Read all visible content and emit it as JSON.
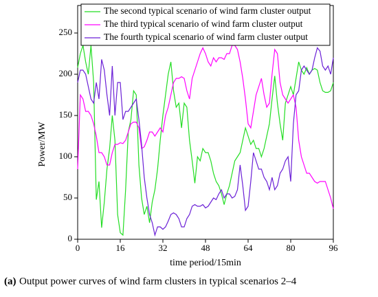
{
  "chart_data": {
    "type": "line",
    "caption_label": "(a)",
    "caption": "Output power curves of wind farm clusters in typical scenarios 2–4",
    "xlabel": "time period/15min",
    "ylabel": "Power/MW",
    "legend": "upper",
    "xlim": [
      0,
      96
    ],
    "xticks": [
      0,
      16,
      32,
      48,
      64,
      80,
      96
    ],
    "ylim": [
      0,
      250
    ],
    "yticks": [
      0,
      50,
      100,
      150,
      200,
      250
    ],
    "x": [
      0,
      1,
      2,
      3,
      4,
      5,
      6,
      7,
      8,
      9,
      10,
      11,
      12,
      13,
      14,
      15,
      16,
      17,
      18,
      19,
      20,
      21,
      22,
      23,
      24,
      25,
      26,
      27,
      28,
      29,
      30,
      31,
      32,
      33,
      34,
      35,
      36,
      37,
      38,
      39,
      40,
      41,
      42,
      43,
      44,
      45,
      46,
      47,
      48,
      49,
      50,
      51,
      52,
      53,
      54,
      55,
      56,
      57,
      58,
      59,
      60,
      61,
      62,
      63,
      64,
      65,
      66,
      67,
      68,
      69,
      70,
      71,
      72,
      73,
      74,
      75,
      76,
      77,
      78,
      79,
      80,
      81,
      82,
      83,
      84,
      85,
      86,
      87,
      88,
      89,
      90,
      91,
      92,
      93,
      94,
      95,
      96
    ],
    "series": [
      {
        "name": "The second typical scenario of wind farm cluster output",
        "color": "#22dd22",
        "values": [
          208,
          225,
          235,
          215,
          200,
          235,
          190,
          48,
          70,
          14,
          45,
          85,
          110,
          150,
          120,
          30,
          8,
          5,
          60,
          130,
          145,
          180,
          175,
          90,
          50,
          30,
          40,
          20,
          45,
          60,
          85,
          120,
          150,
          175,
          200,
          215,
          180,
          160,
          165,
          135,
          165,
          160,
          120,
          95,
          68,
          100,
          95,
          110,
          105,
          105,
          95,
          80,
          70,
          65,
          55,
          42,
          55,
          65,
          80,
          95,
          100,
          105,
          120,
          135,
          125,
          115,
          120,
          110,
          110,
          100,
          110,
          125,
          140,
          170,
          198,
          165,
          140,
          120,
          165,
          175,
          185,
          175,
          195,
          215,
          205,
          200,
          208,
          200,
          205,
          207,
          205,
          190,
          180,
          178,
          178,
          180,
          190
        ]
      },
      {
        "name": "The third typical scenario of wind farm cluster output",
        "color": "#ff00ff",
        "values": [
          85,
          175,
          170,
          155,
          155,
          150,
          140,
          125,
          105,
          105,
          100,
          90,
          90,
          105,
          115,
          115,
          117,
          116,
          120,
          130,
          140,
          142,
          142,
          135,
          110,
          112,
          120,
          130,
          130,
          125,
          130,
          135,
          130,
          150,
          160,
          175,
          190,
          195,
          195,
          197,
          195,
          180,
          170,
          195,
          205,
          215,
          225,
          232,
          225,
          215,
          210,
          220,
          215,
          220,
          220,
          218,
          225,
          225,
          235,
          235,
          230,
          215,
          195,
          170,
          140,
          135,
          155,
          175,
          185,
          195,
          175,
          160,
          165,
          200,
          230,
          225,
          190,
          175,
          170,
          165,
          170,
          175,
          160,
          120,
          100,
          90,
          80,
          80,
          75,
          70,
          68,
          70,
          70,
          70,
          60,
          50,
          37
        ]
      },
      {
        "name": "The fourth typical scenario of wind farm cluster output",
        "color": "#6a1fd6",
        "values": [
          190,
          205,
          205,
          200,
          185,
          170,
          165,
          190,
          170,
          218,
          205,
          175,
          150,
          210,
          150,
          190,
          190,
          145,
          155,
          155,
          160,
          165,
          170,
          145,
          115,
          75,
          50,
          30,
          20,
          5,
          15,
          15,
          12,
          15,
          22,
          30,
          32,
          30,
          25,
          15,
          15,
          25,
          30,
          40,
          42,
          40,
          40,
          42,
          38,
          40,
          45,
          50,
          48,
          55,
          60,
          50,
          55,
          55,
          50,
          52,
          60,
          90,
          65,
          35,
          40,
          70,
          105,
          95,
          85,
          85,
          75,
          70,
          60,
          75,
          60,
          65,
          80,
          85,
          95,
          100,
          70,
          140,
          175,
          180,
          205,
          210,
          205,
          200,
          205,
          220,
          232,
          228,
          210,
          205,
          210,
          200,
          220
        ]
      }
    ]
  }
}
